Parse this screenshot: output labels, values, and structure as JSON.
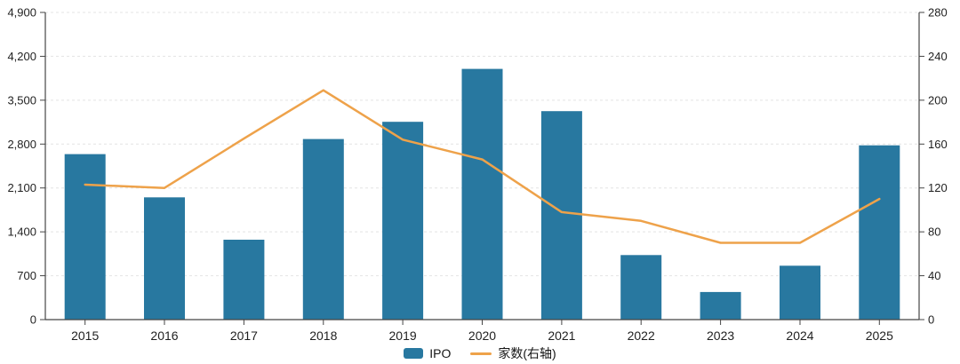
{
  "chart_data": {
    "type": "combo-bar-line",
    "title": "",
    "categories": [
      "2015",
      "2016",
      "2017",
      "2018",
      "2019",
      "2020",
      "2021",
      "2022",
      "2023",
      "2024",
      "2025"
    ],
    "series": [
      {
        "name": "IPO",
        "type": "bar",
        "axis": "left",
        "color": "#2878a0",
        "values": [
          2640,
          1950,
          1275,
          2880,
          3155,
          4000,
          3325,
          1030,
          440,
          860,
          2780
        ]
      },
      {
        "name": "家数(右轴)",
        "type": "line",
        "axis": "right",
        "color": "#eea24a",
        "values": [
          123,
          120,
          165,
          209,
          164,
          146,
          98,
          90,
          70,
          70,
          110
        ]
      }
    ],
    "left_axis": {
      "min": 0,
      "max": 4900,
      "interval": 700,
      "tick_labels": [
        "0",
        "700",
        "1,400",
        "2,100",
        "2,800",
        "3,500",
        "4,200",
        "4,900"
      ]
    },
    "right_axis": {
      "min": 0,
      "max": 280,
      "interval": 40,
      "tick_labels": [
        "0",
        "40",
        "80",
        "120",
        "160",
        "200",
        "240",
        "280"
      ]
    },
    "legend": {
      "position": "bottom-center",
      "items": [
        "IPO",
        "家数(右轴)"
      ]
    },
    "style": {
      "background": "#ffffff",
      "grid_color": "#e4e4e4",
      "grid_line_style": "dashed",
      "axis_color": "#454545",
      "label_color": "#1f1f1f"
    }
  }
}
